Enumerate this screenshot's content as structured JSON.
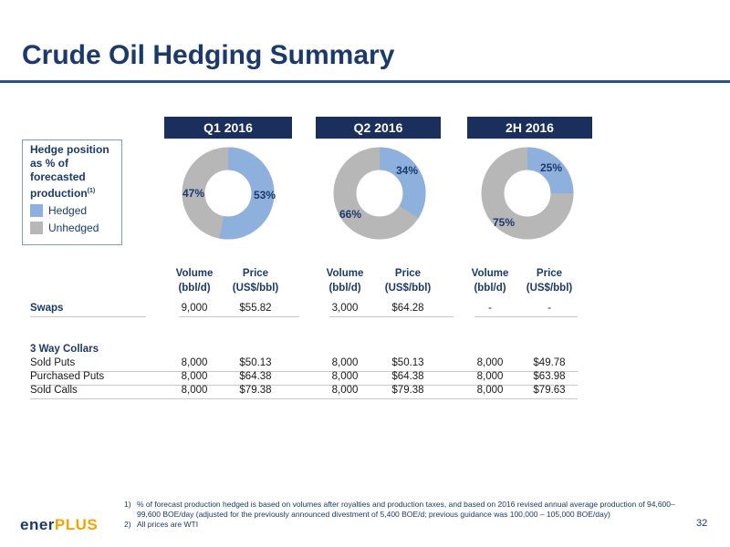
{
  "title": "Crude Oil Hedging Summary",
  "legend": {
    "title": "Hedge position as % of forecasted production",
    "title_note": "(1)",
    "hedged_label": "Hedged",
    "unhedged_label": "Unhedged",
    "hedged_color": "#8eb0dc",
    "unhedged_color": "#b7b7b7"
  },
  "periods": [
    {
      "label": "Q1 2016",
      "hedged_pct": 53,
      "unhedged_pct": 47,
      "hedged_text": "53%",
      "unhedged_text": "47%"
    },
    {
      "label": "Q2 2016",
      "hedged_pct": 34,
      "unhedged_pct": 66,
      "hedged_text": "34%",
      "unhedged_text": "66%"
    },
    {
      "label": "2H 2016",
      "hedged_pct": 25,
      "unhedged_pct": 75,
      "hedged_text": "25%",
      "unhedged_text": "75%"
    }
  ],
  "columns": {
    "volume_line1": "Volume",
    "volume_line2": "(bbl/d)",
    "price_line1": "Price",
    "price_line2": "(US$/bbl)"
  },
  "rows": {
    "swaps": {
      "label": "Swaps",
      "values": [
        "9,000",
        "$55.82",
        "3,000",
        "$64.28",
        "-",
        "-"
      ]
    },
    "collars_heading": "3 Way Collars",
    "sold_puts": {
      "label": "Sold Puts",
      "values": [
        "8,000",
        "$50.13",
        "8,000",
        "$50.13",
        "8,000",
        "$49.78"
      ]
    },
    "purchased_puts": {
      "label": "Purchased Puts",
      "values": [
        "8,000",
        "$64.38",
        "8,000",
        "$64.38",
        "8,000",
        "$63.98"
      ]
    },
    "sold_calls": {
      "label": "Sold Calls",
      "values": [
        "8,000",
        "$79.38",
        "8,000",
        "$79.38",
        "8,000",
        "$79.63"
      ]
    }
  },
  "footnotes": [
    {
      "num": "1)",
      "text": "% of forecast production hedged is based on volumes after royalties and production taxes, and based on 2016 revised annual average production of 94,600– 99,600 BOE/day (adjusted for the previously announced divestment of 5,400 BOE/d; previous guidance was 100,000 – 105,000 BOE/day)"
    },
    {
      "num": "2)",
      "text": "All prices are WTI"
    }
  ],
  "logo": {
    "main": "ener",
    "accent": "PLUS"
  },
  "page_number": "32",
  "colors": {
    "brand_navy": "#1b3a6b",
    "header_bar": "#1a2f5c",
    "accent_gold": "#f2a400"
  }
}
